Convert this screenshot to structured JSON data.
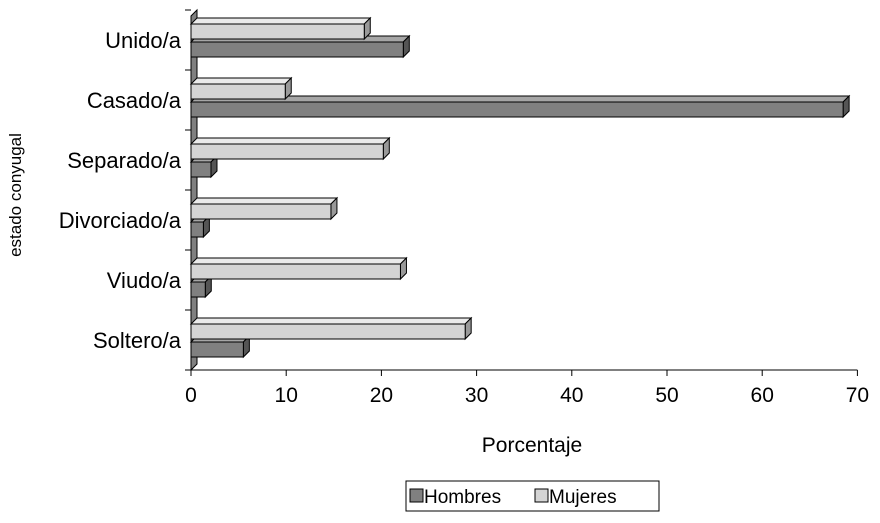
{
  "chart_data": {
    "type": "bar",
    "orientation": "horizontal",
    "style": "3d",
    "categories": [
      "Soltero/a",
      "Viudo/a",
      "Divorciado/a",
      "Separado/a",
      "Casado/a",
      "Unido/a"
    ],
    "series": [
      {
        "name": "Hombres",
        "color": "#808080",
        "values": [
          5.5,
          1.5,
          1.3,
          2.1,
          68.5,
          22.3
        ]
      },
      {
        "name": "Mujeres",
        "color": "#d4d4d4",
        "values": [
          28.8,
          22.0,
          14.7,
          20.2,
          9.9,
          18.2
        ]
      }
    ],
    "xlabel": "Porcentaje",
    "ylabel": "estado conyugal",
    "xlim": [
      0,
      70
    ],
    "xticks": [
      "0",
      "10",
      "20",
      "30",
      "40",
      "50",
      "60",
      "70"
    ],
    "grid": false,
    "legend_position": "bottom"
  }
}
